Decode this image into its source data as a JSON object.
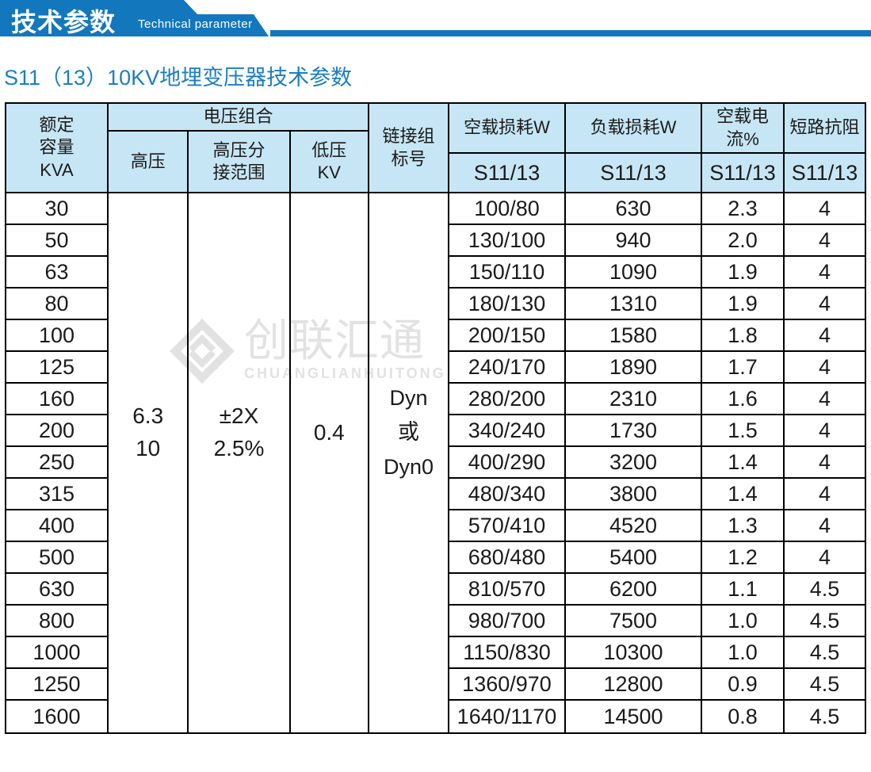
{
  "banner": {
    "title": "技术参数",
    "subtitle": "Technical parameter"
  },
  "page_title": "S11（13）10KV地埋变压器技术参数",
  "colors": {
    "banner_blue": "#1377bd",
    "header_bg": "#c7e6f5",
    "title_blue": "#1b7ec2",
    "border_black": "#000000",
    "watermark_gray": "#e2e2e2"
  },
  "watermark": {
    "logo": "diamond-logo",
    "cn": "创联汇通",
    "en": "CHUANGLIANHUITONG"
  },
  "table": {
    "headers": {
      "capacity": "额定\n容量\nKVA",
      "voltage_group": "电压组合",
      "hv": "高压",
      "hv_tap": "高压分\n接范围",
      "lv": "低压\nKV",
      "connection": "链接组\n标号",
      "noload_loss": "空载损耗W",
      "load_loss": "负载损耗W",
      "noload_current": "空载电流%",
      "impedance": "短路抗阻",
      "model": "S11/13"
    },
    "merged": {
      "hv": "6.3\n10",
      "hv_tap": "±2X\n2.5%",
      "lv": "0.4",
      "connection": "Dyn\n或\nDyn0"
    },
    "rows": [
      {
        "kva": "30",
        "noload": "100/80",
        "load": "630",
        "current": "2.3",
        "impedance": "4"
      },
      {
        "kva": "50",
        "noload": "130/100",
        "load": "940",
        "current": "2.0",
        "impedance": "4"
      },
      {
        "kva": "63",
        "noload": "150/110",
        "load": "1090",
        "current": "1.9",
        "impedance": "4"
      },
      {
        "kva": "80",
        "noload": "180/130",
        "load": "1310",
        "current": "1.9",
        "impedance": "4"
      },
      {
        "kva": "100",
        "noload": "200/150",
        "load": "1580",
        "current": "1.8",
        "impedance": "4"
      },
      {
        "kva": "125",
        "noload": "240/170",
        "load": "1890",
        "current": "1.7",
        "impedance": "4"
      },
      {
        "kva": "160",
        "noload": "280/200",
        "load": "2310",
        "current": "1.6",
        "impedance": "4"
      },
      {
        "kva": "200",
        "noload": "340/240",
        "load": "1730",
        "current": "1.5",
        "impedance": "4"
      },
      {
        "kva": "250",
        "noload": "400/290",
        "load": "3200",
        "current": "1.4",
        "impedance": "4"
      },
      {
        "kva": "315",
        "noload": "480/340",
        "load": "3800",
        "current": "1.4",
        "impedance": "4"
      },
      {
        "kva": "400",
        "noload": "570/410",
        "load": "4520",
        "current": "1.3",
        "impedance": "4"
      },
      {
        "kva": "500",
        "noload": "680/480",
        "load": "5400",
        "current": "1.2",
        "impedance": "4"
      },
      {
        "kva": "630",
        "noload": "810/570",
        "load": "6200",
        "current": "1.1",
        "impedance": "4.5"
      },
      {
        "kva": "800",
        "noload": "980/700",
        "load": "7500",
        "current": "1.0",
        "impedance": "4.5"
      },
      {
        "kva": "1000",
        "noload": "1150/830",
        "load": "10300",
        "current": "1.0",
        "impedance": "4.5"
      },
      {
        "kva": "1250",
        "noload": "1360/970",
        "load": "12800",
        "current": "0.9",
        "impedance": "4.5"
      },
      {
        "kva": "1600",
        "noload": "1640/1170",
        "load": "14500",
        "current": "0.8",
        "impedance": "4.5"
      }
    ]
  }
}
